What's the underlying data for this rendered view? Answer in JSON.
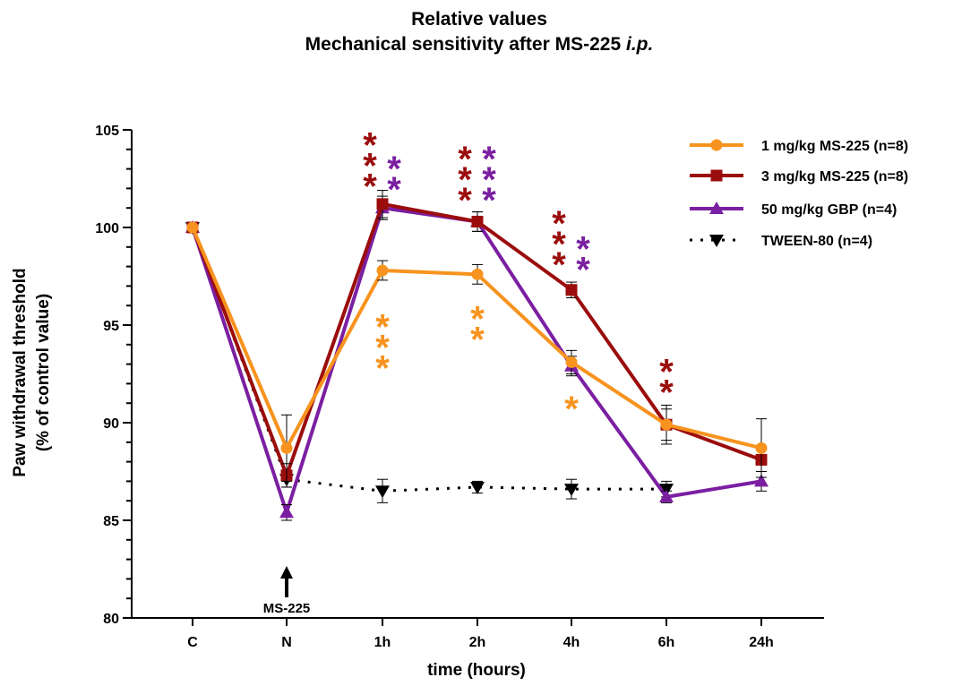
{
  "chart_data": {
    "type": "line",
    "title": "Relative values",
    "subtitle": "Mechanical sensitivity after MS-225",
    "subtitle_italic": "i.p.",
    "xlabel": "time (hours)",
    "ylabel": "Paw withdrawal threshold",
    "ylabel2": "(% of control value)",
    "categories": [
      "C",
      "N",
      "1h",
      "2h",
      "4h",
      "6h",
      "24h"
    ],
    "ylim": [
      80,
      105
    ],
    "yticks": [
      "80",
      "85",
      "90",
      "95",
      "100",
      "105"
    ],
    "legend_position": "top-right",
    "annotation": {
      "label": "MS-225",
      "category": "N",
      "arrow": "up"
    },
    "series": [
      {
        "name": "1 mg/kg MS-225 (n=8)",
        "color": "#f7931e",
        "marker": "circle",
        "line": "solid",
        "values": [
          100,
          88.7,
          97.8,
          97.6,
          93.1,
          89.9,
          88.7
        ],
        "errors": [
          0,
          1.7,
          0.5,
          0.5,
          0.6,
          0.8,
          1.5
        ]
      },
      {
        "name": "3 mg/kg MS-225 (n=8)",
        "color": "#9b0d0d",
        "marker": "square",
        "line": "solid",
        "values": [
          100,
          87.3,
          101.2,
          100.3,
          96.8,
          89.9,
          88.1
        ],
        "errors": [
          0,
          0.6,
          0.7,
          0.5,
          0.4,
          1.0,
          0.6
        ]
      },
      {
        "name": "50 mg/kg GBP (n=4)",
        "color": "#7b1fa2",
        "marker": "triangle-up",
        "line": "solid",
        "values": [
          100,
          85.4,
          101.0,
          100.3,
          92.9,
          86.2,
          87.0
        ],
        "errors": [
          0,
          0.4,
          0.6,
          0.5,
          0.5,
          0.3,
          0.5
        ]
      },
      {
        "name": "TWEEN-80 (n=4)",
        "color": "#000000",
        "marker": "triangle-down",
        "line": "dotted",
        "values": [
          100,
          87.1,
          86.5,
          86.7,
          86.6,
          86.6,
          null
        ],
        "errors": [
          0,
          0.4,
          0.6,
          0.3,
          0.5,
          0.4,
          null
        ]
      }
    ],
    "significance": [
      {
        "category": "1h",
        "color": "#9b0d0d",
        "label": "***",
        "y_top": 104.6,
        "side": "left"
      },
      {
        "category": "1h",
        "color": "#7b1fa2",
        "label": "**",
        "y_top": 103.4,
        "side": "right"
      },
      {
        "category": "1h",
        "color": "#f7931e",
        "label": "***",
        "y_top": 95.3,
        "side": "center"
      },
      {
        "category": "2h",
        "color": "#9b0d0d",
        "label": "***",
        "y_top": 103.9,
        "side": "left"
      },
      {
        "category": "2h",
        "color": "#7b1fa2",
        "label": "***",
        "y_top": 103.9,
        "side": "right"
      },
      {
        "category": "2h",
        "color": "#f7931e",
        "label": "**",
        "y_top": 95.7,
        "side": "center"
      },
      {
        "category": "4h",
        "color": "#9b0d0d",
        "label": "***",
        "y_top": 100.6,
        "side": "left"
      },
      {
        "category": "4h",
        "color": "#7b1fa2",
        "label": "**",
        "y_top": 99.3,
        "side": "right"
      },
      {
        "category": "4h",
        "color": "#f7931e",
        "label": "*",
        "y_top": 91.1,
        "side": "center"
      },
      {
        "category": "6h",
        "color": "#9b0d0d",
        "label": "**",
        "y_top": 93.0,
        "side": "center"
      }
    ]
  }
}
